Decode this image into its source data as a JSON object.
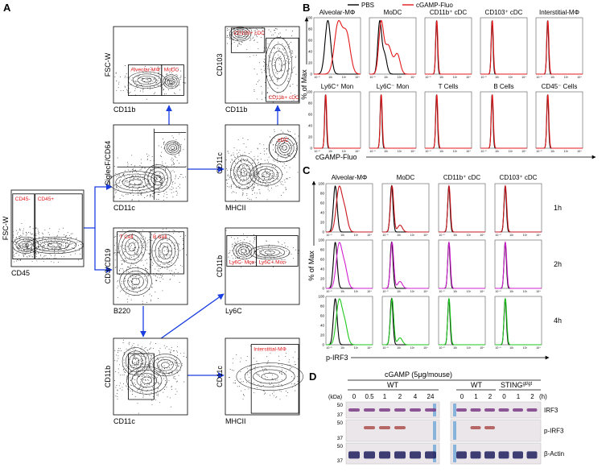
{
  "panel_labels": [
    "A",
    "B",
    "C",
    "D"
  ],
  "panel_a": {
    "plots": [
      {
        "y_label": "FSC-W",
        "x_label": "CD45",
        "gates": [
          "CD45-",
          "CD45+"
        ]
      },
      {
        "y_label": "FSC-W",
        "x_label": "CD11b",
        "gates": [
          "Alveolar-MΦ",
          "MoDC"
        ]
      },
      {
        "y_label": "SiglecF/CD64",
        "x_label": "CD11c",
        "gates": []
      },
      {
        "y_label": "CD3/CD19",
        "x_label": "B220",
        "gates": [
          "T Cell",
          "B Cell"
        ]
      },
      {
        "y_label": "CD11b",
        "x_label": "CD11c",
        "gates": []
      },
      {
        "y_label": "CD103",
        "x_label": "CD11b",
        "gates": [
          "CD103+ cDC",
          "CD11b+ cDC"
        ]
      },
      {
        "y_label": "CD11c",
        "x_label": "MHCII",
        "gates": [
          "cDC"
        ]
      },
      {
        "y_label": "CD11b",
        "x_label": "Ly6C",
        "gates": [
          "Ly6C- Mon",
          "Ly6C+ Mon"
        ]
      },
      {
        "y_label": "CD11c",
        "x_label": "MHCII",
        "gates": [
          "Interstitial-MΦ"
        ]
      }
    ]
  },
  "panel_b": {
    "legend": [
      {
        "name": "PBS",
        "color": "#000000"
      },
      {
        "name": "cGAMP-Fluo",
        "color": "#e3191c"
      }
    ],
    "titles": [
      "Alveolar-MΦ",
      "MoDC",
      "CD11b⁺ cDC",
      "CD103⁺ cDC",
      "Interstitial-MΦ",
      "Ly6C⁺ Mon",
      "Ly6C⁻ Mon",
      "T Cells",
      "B Cells",
      "CD45⁻ Cells"
    ],
    "y_label": "% of Max",
    "x_label": "cGAMP-Fluo",
    "yticks": [
      "100",
      "80",
      "60",
      "40",
      "20",
      "0"
    ],
    "xticks": [
      "10⁻⁰",
      "10²",
      "10³",
      "10⁴"
    ]
  },
  "panel_c": {
    "titles": [
      "Alveolar-MΦ",
      "MoDC",
      "CD11b⁺ cDC",
      "CD103⁺ cDC"
    ],
    "rows": [
      {
        "label": "1h",
        "color": "#c8161d"
      },
      {
        "label": "2h",
        "color": "#d21fd2"
      },
      {
        "label": "4h",
        "color": "#1ec81e"
      }
    ],
    "y_label": "% of Max",
    "x_label": "p-IRF3",
    "yticks": [
      "100",
      "80",
      "60",
      "40",
      "20",
      "0"
    ],
    "xticks": [
      "10⁻⁰",
      "10²",
      "10³",
      "10⁴"
    ]
  },
  "panel_d": {
    "treatment": "cGAMP (5μg/mouse)",
    "group_wt_left": "WT",
    "group_wt_right": "WT",
    "group_sting": "STING",
    "group_sting_sup": "gt/gt",
    "kda": "(kDa)",
    "lanes_left": [
      "0",
      "0.5",
      "1",
      "2",
      "4",
      "24"
    ],
    "lanes_right": [
      "0",
      "1",
      "2",
      "0",
      "1",
      "2"
    ],
    "time_unit": "(h)",
    "blots": [
      {
        "label": "IRF3",
        "markers": [
          "50",
          "37"
        ]
      },
      {
        "label": "p-IRF3",
        "markers": [
          "50",
          "37"
        ]
      },
      {
        "label": "β-Actin",
        "markers": [
          "50",
          "37"
        ]
      }
    ]
  }
}
